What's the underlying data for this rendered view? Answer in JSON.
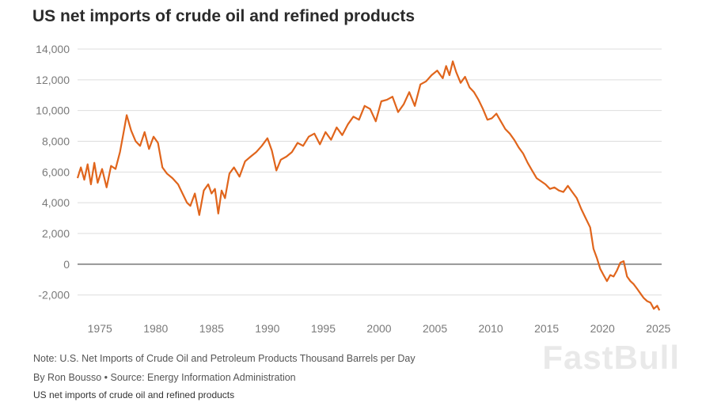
{
  "header": {
    "title": "US net imports of crude oil and refined products"
  },
  "footer": {
    "note": "Note: U.S. Net Imports of Crude Oil and Petroleum Products Thousand Barrels per Day",
    "byline": "By Ron Bousso • Source: Energy Information Administration",
    "caption": "US net imports of crude oil and refined products"
  },
  "watermark": "FastBull",
  "colors": {
    "line": "#e0651c",
    "grid": "#dddddd",
    "zero": "#333333",
    "text": "#7a7a7a"
  },
  "chart_data": {
    "type": "line",
    "title": "US net imports of crude oil and refined products",
    "xlabel": "",
    "ylabel": "",
    "xlim": [
      1973,
      2025.3
    ],
    "ylim": [
      -3200,
      14000
    ],
    "grid": true,
    "legend": "none",
    "xticks": [
      1975,
      1980,
      1985,
      1990,
      1995,
      2000,
      2005,
      2010,
      2015,
      2020,
      2025
    ],
    "xtick_labels": [
      "1975",
      "1980",
      "1985",
      "1990",
      "1995",
      "2000",
      "2005",
      "2010",
      "2015",
      "2020",
      "2025"
    ],
    "yticks": [
      -2000,
      0,
      2000,
      4000,
      6000,
      8000,
      10000,
      12000,
      14000
    ],
    "ytick_labels": [
      "-2,000",
      "0",
      "2,000",
      "4,000",
      "6,000",
      "8,000",
      "10,000",
      "12,000",
      "14,000"
    ],
    "series": [
      {
        "x": [
          1973.0,
          1973.3,
          1973.6,
          1973.9,
          1974.2,
          1974.5,
          1974.8,
          1975.2,
          1975.6,
          1976.0,
          1976.4,
          1976.8,
          1977.1,
          1977.4,
          1977.8,
          1978.2,
          1978.6,
          1979.0,
          1979.4,
          1979.8,
          1980.2,
          1980.6,
          1981.0,
          1981.5,
          1982.0,
          1982.4,
          1982.8,
          1983.1,
          1983.5,
          1983.9,
          1984.3,
          1984.7,
          1985.0,
          1985.3,
          1985.6,
          1985.9,
          1986.2,
          1986.6,
          1987.0,
          1987.5,
          1988.0,
          1988.5,
          1989.0,
          1989.5,
          1990.0,
          1990.4,
          1990.8,
          1991.2,
          1991.7,
          1992.2,
          1992.7,
          1993.2,
          1993.7,
          1994.2,
          1994.7,
          1995.2,
          1995.7,
          1996.2,
          1996.7,
          1997.2,
          1997.7,
          1998.2,
          1998.7,
          1999.2,
          1999.7,
          2000.2,
          2000.7,
          2001.2,
          2001.7,
          2002.2,
          2002.7,
          2003.2,
          2003.7,
          2004.2,
          2004.7,
          2005.2,
          2005.7,
          2006.0,
          2006.3,
          2006.6,
          2006.9,
          2007.3,
          2007.7,
          2008.1,
          2008.5,
          2008.9,
          2009.3,
          2009.7,
          2010.1,
          2010.5,
          2010.9,
          2011.3,
          2011.7,
          2012.1,
          2012.5,
          2012.9,
          2013.3,
          2013.7,
          2014.1,
          2014.5,
          2014.9,
          2015.3,
          2015.7,
          2016.1,
          2016.5,
          2016.9,
          2017.3,
          2017.7,
          2018.1,
          2018.5,
          2018.9,
          2019.2,
          2019.5,
          2019.8,
          2020.1,
          2020.4,
          2020.7,
          2021.0,
          2021.3,
          2021.6,
          2021.9,
          2022.2,
          2022.5,
          2022.8,
          2023.1,
          2023.4,
          2023.7,
          2024.0,
          2024.3,
          2024.6,
          2024.9,
          2025.1
        ],
        "y": [
          5600,
          6300,
          5500,
          6500,
          5200,
          6600,
          5300,
          6200,
          5000,
          6400,
          6200,
          7300,
          8500,
          9700,
          8700,
          8000,
          7700,
          8600,
          7500,
          8300,
          7900,
          6300,
          5900,
          5600,
          5200,
          4600,
          4000,
          3800,
          4600,
          3200,
          4800,
          5200,
          4600,
          4900,
          3300,
          4800,
          4300,
          5900,
          6300,
          5700,
          6700,
          7000,
          7300,
          7700,
          8200,
          7400,
          6100,
          6800,
          7000,
          7300,
          7900,
          7700,
          8300,
          8500,
          7800,
          8600,
          8100,
          8900,
          8400,
          9100,
          9600,
          9400,
          10300,
          10100,
          9300,
          10600,
          10700,
          10900,
          9900,
          10400,
          11200,
          10300,
          11700,
          11900,
          12300,
          12600,
          12100,
          12900,
          12300,
          13200,
          12500,
          11800,
          12200,
          11500,
          11200,
          10700,
          10100,
          9400,
          9500,
          9800,
          9300,
          8800,
          8500,
          8100,
          7600,
          7200,
          6600,
          6100,
          5600,
          5400,
          5200,
          4900,
          5000,
          4800,
          4700,
          5100,
          4700,
          4300,
          3600,
          3000,
          2400,
          1000,
          400,
          -300,
          -700,
          -1100,
          -700,
          -800,
          -400,
          100,
          200,
          -800,
          -1100,
          -1300,
          -1600,
          -1900,
          -2200,
          -2400,
          -2500,
          -2900,
          -2700,
          -3000
        ]
      }
    ]
  }
}
